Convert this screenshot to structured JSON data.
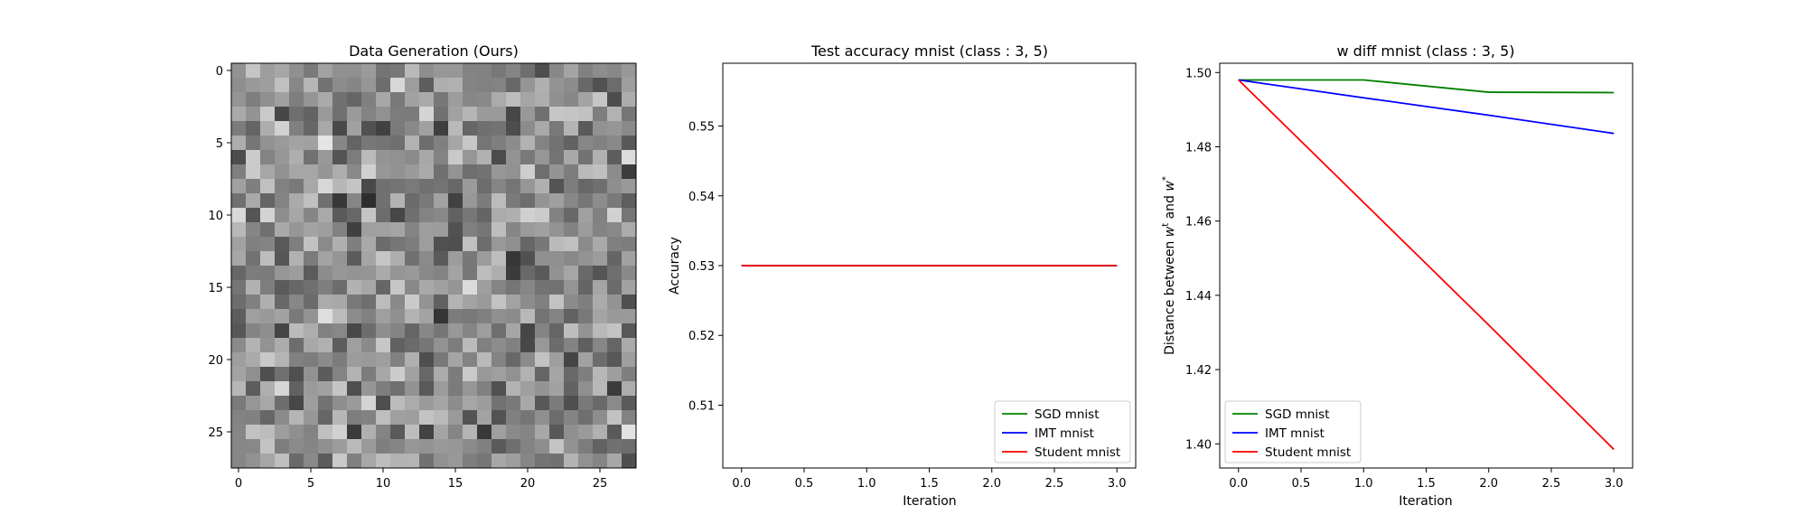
{
  "chart_data": [
    {
      "type": "heatmap",
      "title": "Data Generation (Ours)",
      "rows": 28,
      "cols": 28,
      "colormap": "gray",
      "xticks": [
        0,
        5,
        10,
        15,
        20,
        25
      ],
      "yticks": [
        0,
        5,
        10,
        15,
        20,
        25
      ]
    },
    {
      "type": "line",
      "title": "Test accuracy mnist (class : 3, 5)",
      "xlabel": "Iteration",
      "ylabel": "Accuracy",
      "xlim": [
        -0.15,
        3.15
      ],
      "ylim": [
        0.501,
        0.559
      ],
      "xticks": [
        "0.0",
        "0.5",
        "1.0",
        "1.5",
        "2.0",
        "2.5",
        "3.0"
      ],
      "yticks": [
        "0.51",
        "0.52",
        "0.53",
        "0.54",
        "0.55"
      ],
      "x": [
        0,
        1,
        2,
        3
      ],
      "series": [
        {
          "name": "SGD mnist",
          "color": "#008000",
          "values": [
            0.53,
            0.53,
            0.53,
            0.53
          ]
        },
        {
          "name": "IMT mnist",
          "color": "#0000ff",
          "values": [
            0.53,
            0.53,
            0.53,
            0.53
          ]
        },
        {
          "name": "Student mnist",
          "color": "#ff0000",
          "values": [
            0.53,
            0.53,
            0.53,
            0.53
          ]
        }
      ],
      "legend": "lower-right"
    },
    {
      "type": "line",
      "title": "w diff mnist (class : 3, 5)",
      "xlabel": "Iteration",
      "ylabel": "Distance between w^t and w^*",
      "xlim": [
        -0.15,
        3.15
      ],
      "ylim": [
        1.3935,
        1.5025
      ],
      "xticks": [
        "0.0",
        "0.5",
        "1.0",
        "1.5",
        "2.0",
        "2.5",
        "3.0"
      ],
      "yticks": [
        "1.40",
        "1.42",
        "1.44",
        "1.46",
        "1.48",
        "1.50"
      ],
      "x": [
        0,
        1,
        2,
        3
      ],
      "series": [
        {
          "name": "SGD mnist",
          "color": "#008000",
          "values": [
            1.498,
            1.498,
            1.4947,
            1.4946
          ]
        },
        {
          "name": "IMT mnist",
          "color": "#0000ff",
          "values": [
            1.498,
            1.4932,
            1.4885,
            1.4836
          ]
        },
        {
          "name": "Student mnist",
          "color": "#ff0000",
          "values": [
            1.498,
            1.465,
            1.432,
            1.3985
          ]
        }
      ],
      "legend": "lower-left"
    }
  ]
}
